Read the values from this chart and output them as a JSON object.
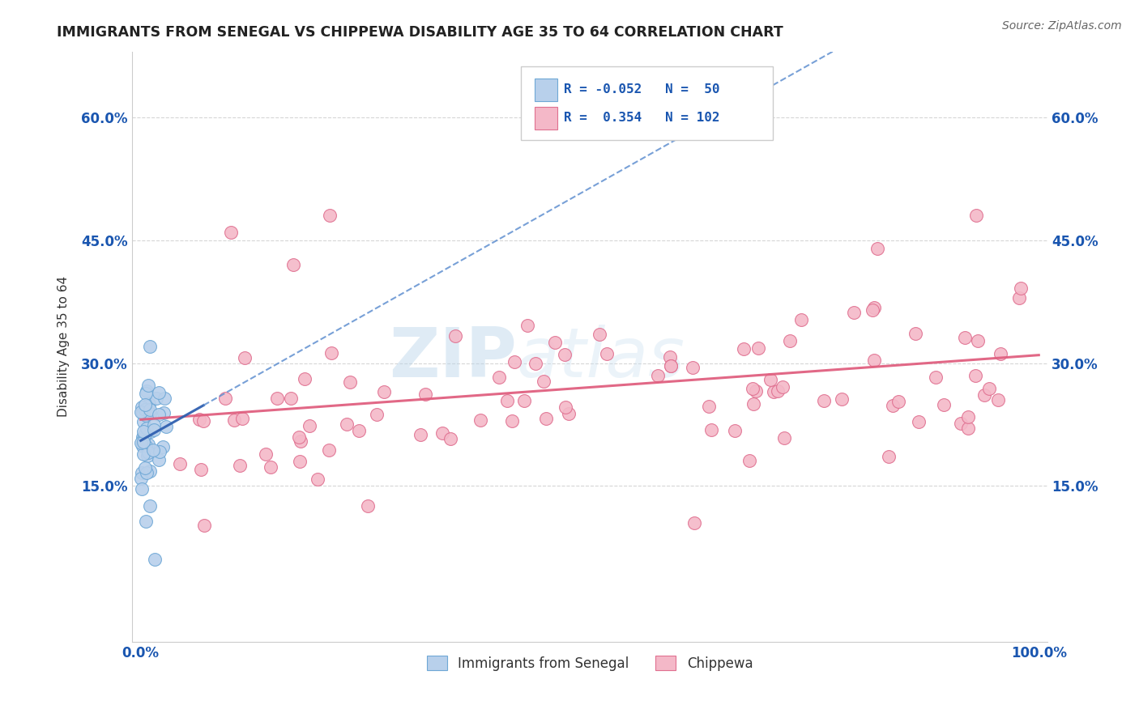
{
  "title": "IMMIGRANTS FROM SENEGAL VS CHIPPEWA DISABILITY AGE 35 TO 64 CORRELATION CHART",
  "source_text": "Source: ZipAtlas.com",
  "ylabel": "Disability Age 35 to 64",
  "xlim": [
    -0.01,
    1.01
  ],
  "ylim": [
    -0.04,
    0.68
  ],
  "x_ticks": [
    0.0,
    1.0
  ],
  "x_tick_labels": [
    "0.0%",
    "100.0%"
  ],
  "y_ticks": [
    0.15,
    0.3,
    0.45,
    0.6
  ],
  "y_tick_labels": [
    "15.0%",
    "30.0%",
    "45.0%",
    "60.0%"
  ],
  "legend_r_entries": [
    {
      "r_label": "R = -0.052",
      "n_label": "N=  50",
      "facecolor": "#b8d0eb",
      "edgecolor": "#6fa8d6"
    },
    {
      "r_label": "R =  0.354",
      "n_label": "N= 102",
      "facecolor": "#f4b8c8",
      "edgecolor": "#e07090"
    }
  ],
  "bottom_legend": [
    {
      "label": "Immigrants from Senegal",
      "facecolor": "#b8d0eb",
      "edgecolor": "#6fa8d6"
    },
    {
      "label": "Chippewa",
      "facecolor": "#f4b8c8",
      "edgecolor": "#e07090"
    }
  ],
  "watermark_zip": "ZIP",
  "watermark_atlas": "atlas",
  "background_color": "#ffffff",
  "grid_color": "#cccccc",
  "title_color": "#222222",
  "tick_label_color": "#1a56b0",
  "senegal_dot_color": "#b8d0eb",
  "senegal_dot_edge": "#6fa8d6",
  "chippewa_dot_color": "#f4b8c8",
  "chippewa_dot_edge": "#e07090",
  "trend_senegal_solid_color": "#3060b0",
  "trend_senegal_dash_color": "#6090d0",
  "trend_chippewa_color": "#e06080"
}
